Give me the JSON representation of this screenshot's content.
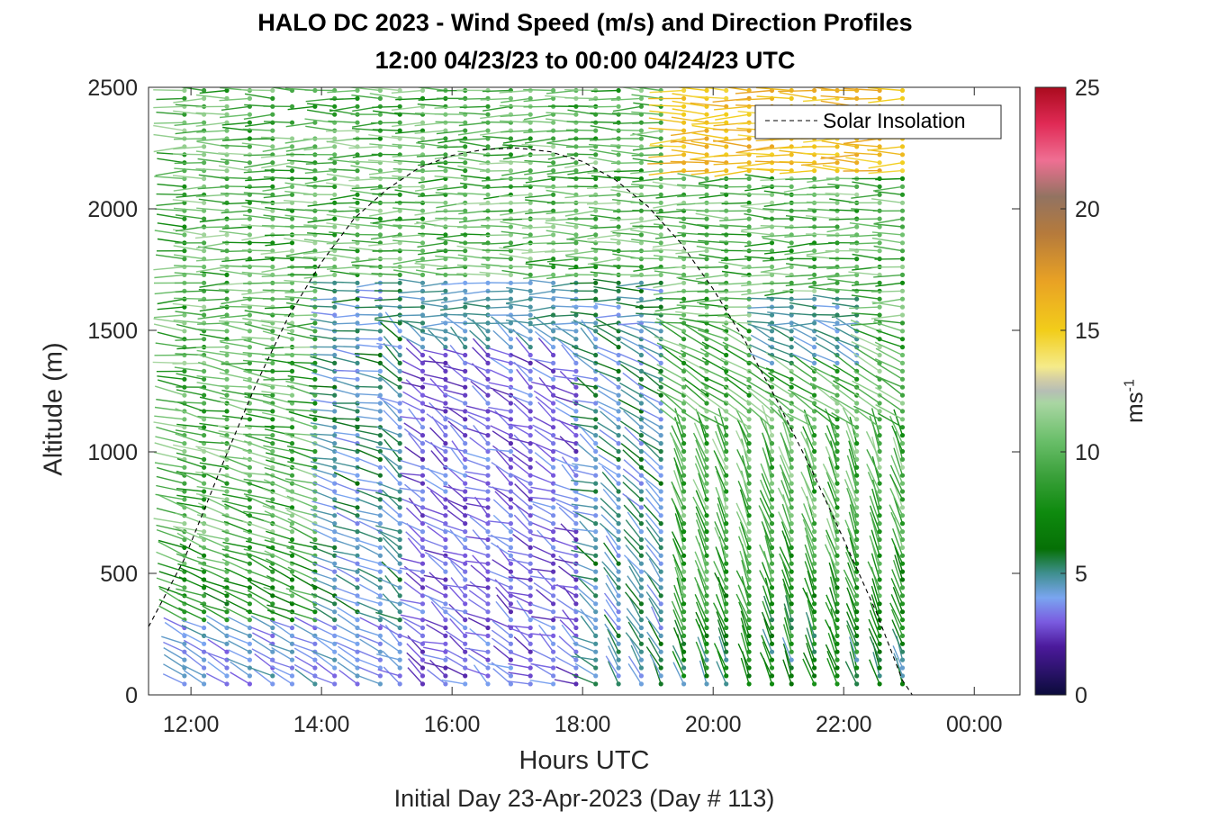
{
  "chart_data": {
    "type": "wind-barb profile (quiver)",
    "title": "HALO DC 2023 - Wind Speed (m/s) and Direction Profiles",
    "subtitle": "12:00 04/23/23 to 00:00 04/24/23  UTC",
    "xlabel": "Hours UTC",
    "xlabel2": "Initial Day 23-Apr-2023 (Day # 113)",
    "ylabel": "Altitude (m)",
    "colorbar_label": "ms",
    "colorbar_label_exp": "-1",
    "x_ticks": [
      "12:00",
      "14:00",
      "16:00",
      "18:00",
      "20:00",
      "22:00",
      "00:00"
    ],
    "x_tick_hours": [
      12,
      14,
      16,
      18,
      20,
      22,
      24
    ],
    "xlim_hours": [
      11.35,
      24.7
    ],
    "y_ticks": [
      "0",
      "500",
      "1000",
      "1500",
      "2000",
      "2500"
    ],
    "ylim": [
      0,
      2500
    ],
    "colorbar_ticks": [
      "0",
      "5",
      "10",
      "15",
      "20",
      "25"
    ],
    "colorbar_lim": [
      0,
      25
    ],
    "legend": {
      "label": "Solar Insolation",
      "placement": "top-right"
    },
    "profile_times_hours": [
      11.9,
      12.2,
      12.55,
      12.9,
      13.25,
      13.55,
      13.9,
      14.2,
      14.55,
      14.9,
      15.2,
      15.55,
      15.9,
      16.2,
      16.55,
      16.9,
      17.2,
      17.55,
      17.9,
      18.2,
      18.55,
      18.9,
      19.2,
      19.55,
      19.9,
      20.2,
      20.55,
      20.9,
      21.2,
      21.55,
      21.9,
      22.2,
      22.55,
      22.9
    ],
    "solar_insolation": [
      [
        11.35,
        280
      ],
      [
        11.9,
        560
      ],
      [
        12.5,
        960
      ],
      [
        13.0,
        1280
      ],
      [
        13.5,
        1560
      ],
      [
        14.0,
        1780
      ],
      [
        14.5,
        1960
      ],
      [
        15.0,
        2080
      ],
      [
        15.5,
        2170
      ],
      [
        16.0,
        2220
      ],
      [
        16.5,
        2245
      ],
      [
        17.0,
        2250
      ],
      [
        17.5,
        2235
      ],
      [
        18.0,
        2195
      ],
      [
        18.5,
        2120
      ],
      [
        19.0,
        2010
      ],
      [
        19.5,
        1860
      ],
      [
        20.0,
        1670
      ],
      [
        20.5,
        1450
      ],
      [
        21.0,
        1200
      ],
      [
        21.5,
        930
      ],
      [
        22.0,
        640
      ],
      [
        22.5,
        340
      ],
      [
        22.9,
        60
      ],
      [
        23.05,
        0
      ],
      [
        24.7,
        0
      ]
    ],
    "colormap": [
      [
        0,
        "#0b0b3b"
      ],
      [
        2,
        "#4c1a9c"
      ],
      [
        3,
        "#7a5be0"
      ],
      [
        4,
        "#7aa5f0"
      ],
      [
        5,
        "#3f8f8f"
      ],
      [
        6,
        "#067006"
      ],
      [
        7.5,
        "#0e8a0e"
      ],
      [
        9,
        "#3aa03a"
      ],
      [
        10.5,
        "#6bbf6b"
      ],
      [
        12,
        "#a9d6a2"
      ],
      [
        12.6,
        "#b9b9b9"
      ],
      [
        13.5,
        "#f5eb8a"
      ],
      [
        15,
        "#f2cd1a"
      ],
      [
        17,
        "#e9a224"
      ],
      [
        19,
        "#b57a3c"
      ],
      [
        20.5,
        "#927361"
      ],
      [
        22,
        "#ef6f93"
      ],
      [
        23.5,
        "#e02a55"
      ],
      [
        25,
        "#aa0b1e"
      ]
    ]
  }
}
